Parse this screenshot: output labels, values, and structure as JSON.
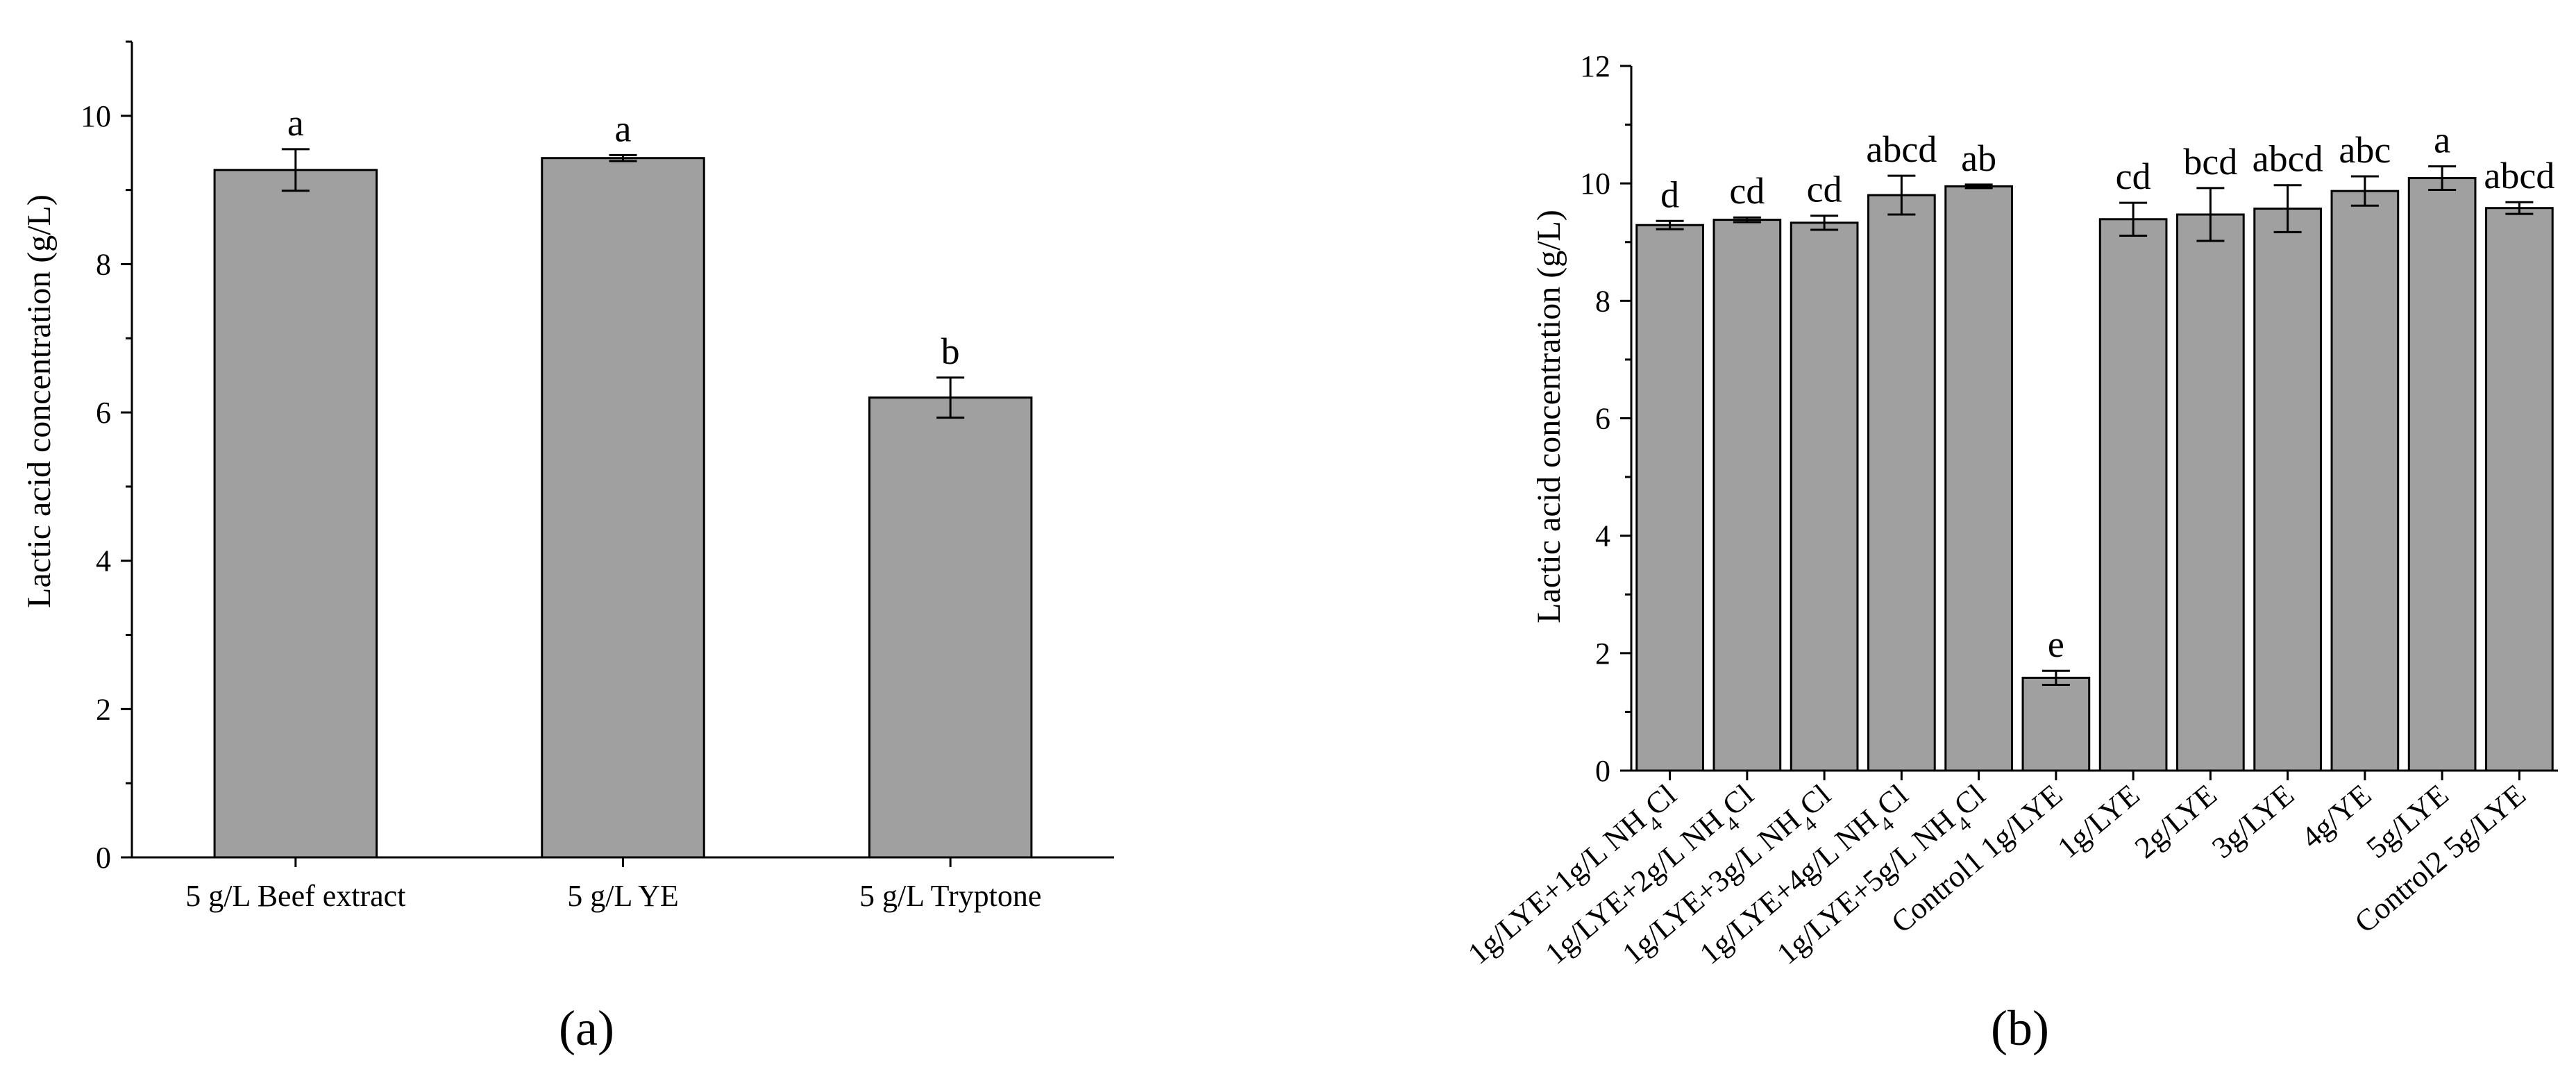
{
  "chart_data": [
    {
      "type": "bar",
      "panel_label": "(a)",
      "categories": [
        "5 g/L Beef extract",
        "5 g/L YE",
        "5 g/L Tryptone"
      ],
      "values": [
        9.27,
        9.43,
        6.2
      ],
      "errors": [
        0.28,
        0.04,
        0.27
      ],
      "significance": [
        "a",
        "a",
        "b"
      ],
      "xlabel": "",
      "ylabel": "Lactic acid concentration (g/L)",
      "ylim": [
        0,
        11
      ],
      "yticks": [
        0,
        2,
        4,
        6,
        8,
        10
      ],
      "bar_color": "#a0a0a0",
      "grid": false,
      "legend": "none"
    },
    {
      "type": "bar",
      "panel_label": "(b)",
      "categories": [
        {
          "pre": "1g/LYE+1g/L NH",
          "sub": "4",
          "post": "Cl"
        },
        {
          "pre": "1g/LYE+2g/L NH",
          "sub": "4",
          "post": "Cl"
        },
        {
          "pre": "1g/LYE+3g/L NH",
          "sub": "4",
          "post": "Cl"
        },
        {
          "pre": "1g/LYE+4g/L NH",
          "sub": "4",
          "post": "Cl"
        },
        {
          "pre": "1g/LYE+5g/L NH",
          "sub": "4",
          "post": "Cl"
        },
        {
          "pre": "Control1 1g/LYE",
          "sub": "",
          "post": ""
        },
        {
          "pre": "1g/LYE",
          "sub": "",
          "post": ""
        },
        {
          "pre": "2g/LYE",
          "sub": "",
          "post": ""
        },
        {
          "pre": "3g/LYE",
          "sub": "",
          "post": ""
        },
        {
          "pre": "4g/YE",
          "sub": "",
          "post": ""
        },
        {
          "pre": "5g/LYE",
          "sub": "",
          "post": ""
        },
        {
          "pre": "Control2 5g/LYE",
          "sub": "",
          "post": ""
        }
      ],
      "values": [
        9.29,
        9.38,
        9.33,
        9.8,
        9.95,
        1.58,
        9.39,
        9.47,
        9.57,
        9.87,
        10.09,
        9.58
      ],
      "errors": [
        0.07,
        0.04,
        0.12,
        0.33,
        0.03,
        0.12,
        0.28,
        0.45,
        0.4,
        0.25,
        0.2,
        0.1
      ],
      "significance": [
        "d",
        "cd",
        "cd",
        "abcd",
        "ab",
        "e",
        "cd",
        "bcd",
        "abcd",
        "abc",
        "a",
        "abcd"
      ],
      "xlabel": "",
      "ylabel": "Lactic acid concentration (g/L)",
      "ylim": [
        0,
        12
      ],
      "yticks": [
        0,
        2,
        4,
        6,
        8,
        10,
        12
      ],
      "bar_color": "#a0a0a0",
      "grid": false,
      "legend": "none"
    }
  ]
}
